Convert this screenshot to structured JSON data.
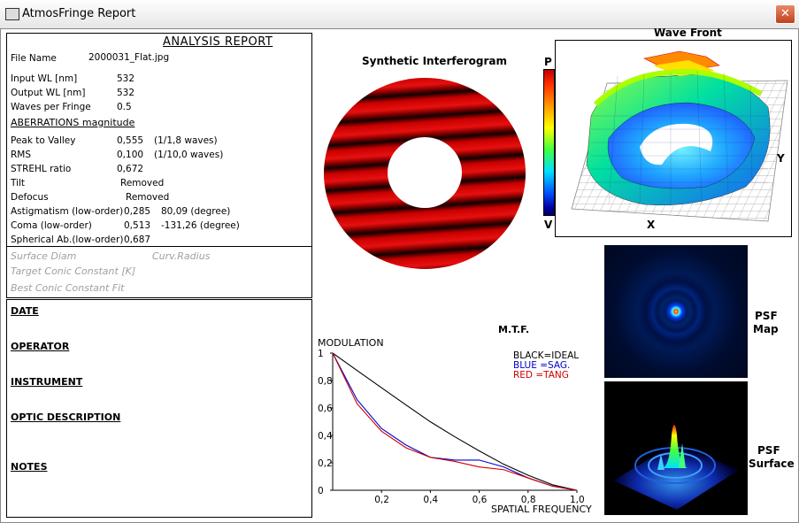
{
  "window": {
    "app_name": "AtmosFringe",
    "title": "AtmosFringe  Report",
    "close_glyph": "✕"
  },
  "report": {
    "title": "ANALYSIS  REPORT",
    "file_name_label": "File Name",
    "file_name_value": "2000031_Flat.jpg",
    "params": [
      {
        "label": "Input  WL [nm]",
        "value": "532"
      },
      {
        "label": "Output WL [nm]",
        "value": "532"
      },
      {
        "label": "Waves per Fringe",
        "value": "0.5"
      }
    ],
    "aberrations_header": "ABERRATIONS magnitude",
    "aberrations": [
      {
        "label": "Peak to Valley",
        "value": "0,555",
        "extra": "(1/1,8 waves)"
      },
      {
        "label": "RMS",
        "value": "0,100",
        "extra": "(1/10,0 waves)"
      },
      {
        "label": "STREHL ratio",
        "value": "0,672",
        "extra": ""
      },
      {
        "label": "Tilt",
        "value": "Removed",
        "extra": ""
      },
      {
        "label": "Defocus",
        "value": "Removed",
        "extra": ""
      },
      {
        "label": "Astigmatism  (low-order)",
        "value": "0,285",
        "extra": "80,09  (degree)"
      },
      {
        "label": "Coma          (low-order)",
        "value": "0,513",
        "extra": "-131,26  (degree)"
      },
      {
        "label": "Spherical Ab.(low-order)",
        "value": "0,687",
        "extra": ""
      }
    ],
    "surface_diam": "Surface Diam",
    "curv_radius": "Curv.Radius",
    "target_conic": "Target Conic Constant [K]",
    "best_conic": "Best Conic Constant Fit"
  },
  "notes": {
    "date": "DATE",
    "operator": "OPERATOR",
    "instrument": "INSTRUMENT",
    "optic_description": "OPTIC DESCRIPTION",
    "notes": "NOTES"
  },
  "interferogram": {
    "title": "Synthetic Interferogram"
  },
  "colorbar": {
    "top": "P",
    "bottom": "V"
  },
  "wavefront": {
    "title": "Wave Front",
    "x_label": "X",
    "y_label": "Y"
  },
  "psf": {
    "map_label_1": "PSF",
    "map_label_2": "Map",
    "surface_label_1": "PSF",
    "surface_label_2": "Surface"
  },
  "chart_data": {
    "type": "line",
    "title": "M.T.F.",
    "ylabel": "MODULATION",
    "xlabel": "SPATIAL FREQUENCY",
    "xlim": [
      0,
      1
    ],
    "ylim": [
      0,
      1
    ],
    "xticks": [
      "0,2",
      "0,4",
      "0,6",
      "0,8",
      "1,0"
    ],
    "yticks": [
      "0",
      "0,2",
      "0,4",
      "0,6",
      "0,8",
      "1"
    ],
    "legend": [
      "BLACK=IDEAL",
      "BLUE  =SAG.",
      "RED    =TANG"
    ],
    "x": [
      0,
      0.1,
      0.2,
      0.3,
      0.4,
      0.5,
      0.6,
      0.7,
      0.8,
      0.9,
      1.0
    ],
    "series": [
      {
        "name": "IDEAL",
        "color": "#000000",
        "values": [
          1.0,
          0.873,
          0.747,
          0.622,
          0.499,
          0.39,
          0.287,
          0.19,
          0.11,
          0.04,
          0.0
        ]
      },
      {
        "name": "SAG.",
        "color": "#0000cc",
        "values": [
          1.0,
          0.66,
          0.45,
          0.33,
          0.24,
          0.22,
          0.22,
          0.17,
          0.09,
          0.03,
          0.0
        ]
      },
      {
        "name": "TANG",
        "color": "#cc0000",
        "values": [
          1.0,
          0.63,
          0.43,
          0.31,
          0.24,
          0.21,
          0.17,
          0.15,
          0.09,
          0.03,
          0.0
        ]
      }
    ]
  }
}
